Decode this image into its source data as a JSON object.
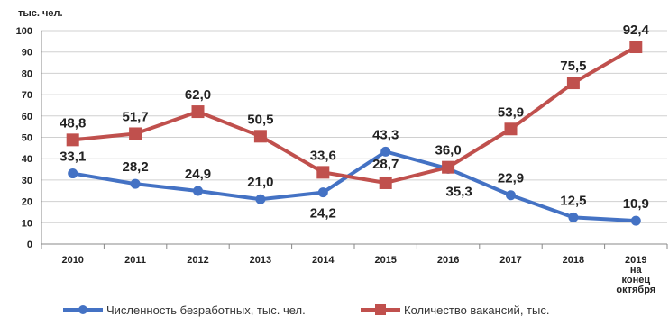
{
  "chart_data": {
    "type": "line",
    "ylabel": "тыс. чел.",
    "ylim": [
      0,
      100
    ],
    "yticks": [
      0,
      10,
      20,
      30,
      40,
      50,
      60,
      70,
      80,
      90,
      100
    ],
    "categories": [
      "2010",
      "2011",
      "2012",
      "2013",
      "2014",
      "2015",
      "2016",
      "2017",
      "2018",
      "2019 на конец октября"
    ],
    "series": [
      {
        "name": "Численность безработных, тыс. чел.",
        "color": "#4472c4",
        "marker": "circle",
        "values": [
          33.1,
          28.2,
          24.9,
          21.0,
          24.2,
          43.3,
          35.3,
          22.9,
          12.5,
          10.9
        ],
        "labels": [
          "33,1",
          "28,2",
          "24,9",
          "21,0",
          "24,2",
          "43,3",
          "35,3",
          "22,9",
          "12,5",
          "10,9"
        ]
      },
      {
        "name": "Количество вакансий, тыс.",
        "color": "#c0504d",
        "marker": "square",
        "values": [
          48.8,
          51.7,
          62.0,
          50.5,
          33.6,
          28.7,
          36.0,
          53.9,
          75.5,
          92.4
        ],
        "labels": [
          "48,8",
          "51,7",
          "62,0",
          "50,5",
          "33,6",
          "28,7",
          "36,0",
          "53,9",
          "75,5",
          "92,4"
        ]
      }
    ],
    "grid": true,
    "legend": "bottom"
  }
}
